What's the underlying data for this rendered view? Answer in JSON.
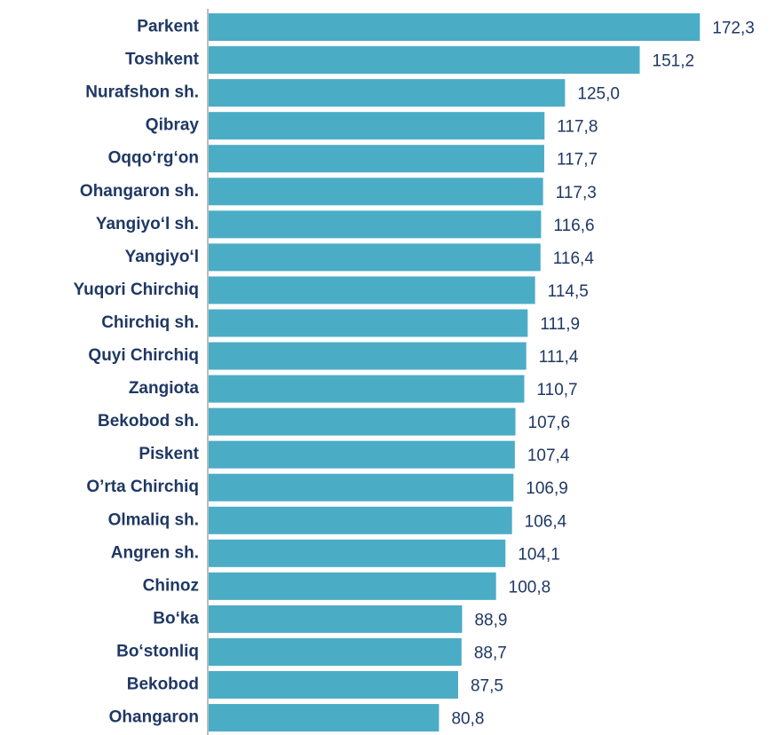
{
  "chart_data": {
    "type": "hbar",
    "categories": [
      "Parkent",
      "Toshkent",
      "Nurafshon sh.",
      "Qibray",
      "Oqqo‘rg‘on",
      "Ohangaron sh.",
      "Yangiyo‘l sh.",
      "Yangiyo‘l",
      "Yuqori Chirchiq",
      "Chirchiq sh.",
      "Quyi Chirchiq",
      "Zangiota",
      "Bekobod sh.",
      "Piskent",
      "O’rta Chirchiq",
      "Olmaliq sh.",
      "Angren sh.",
      "Chinoz",
      "Bo‘ka",
      "Bo‘stonliq",
      "Bekobod",
      "Ohangaron"
    ],
    "values": [
      172.3,
      151.2,
      125.0,
      117.8,
      117.7,
      117.3,
      116.6,
      116.4,
      114.5,
      111.9,
      111.4,
      110.7,
      107.6,
      107.4,
      106.9,
      106.4,
      104.1,
      100.8,
      88.9,
      88.7,
      87.5,
      80.8
    ],
    "value_labels": [
      "172,3",
      "151,2",
      "125,0",
      "117,8",
      "117,7",
      "117,3",
      "116,6",
      "116,4",
      "114,5",
      "111,9",
      "111,4",
      "110,7",
      "107,6",
      "107,4",
      "106,9",
      "106,4",
      "104,1",
      "100,8",
      "88,9",
      "88,7",
      "87,5",
      "80,8"
    ],
    "color": "#4bacc6",
    "xlim": [
      0,
      180
    ]
  }
}
